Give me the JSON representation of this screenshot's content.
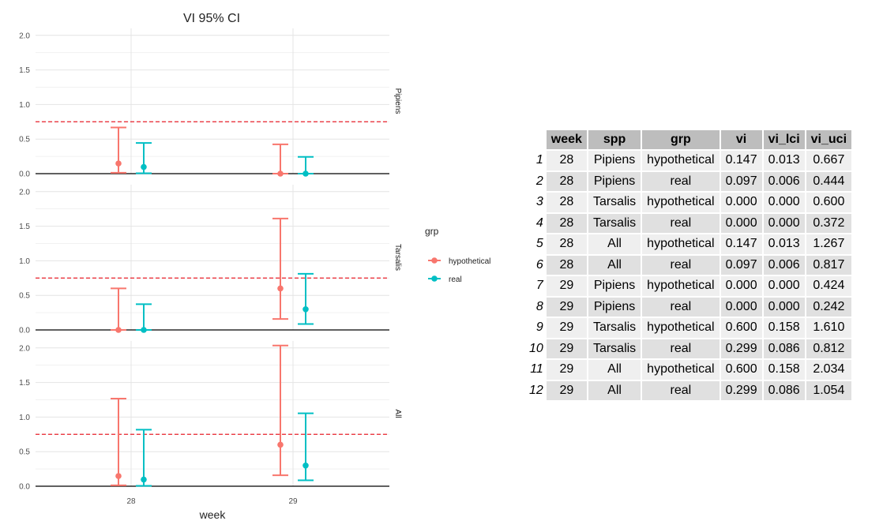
{
  "chart_data": {
    "type": "errorbar",
    "title": "VI 95% CI",
    "xlabel": "week",
    "ylabel": "",
    "categories": [
      "28",
      "29"
    ],
    "ylim": [
      0,
      2.1
    ],
    "y_ticks": [
      "0.0",
      "0.5",
      "1.0",
      "1.5",
      "2.0"
    ],
    "reference_line": 0.75,
    "legend": {
      "title": "grp",
      "position": "right",
      "items": [
        {
          "label": "hypothetical",
          "color": "#F8766D"
        },
        {
          "label": "real",
          "color": "#00BFC4"
        }
      ]
    },
    "panels": [
      {
        "label": "Pipiens",
        "series": [
          {
            "name": "hypothetical",
            "points": [
              {
                "x": "28",
                "vi": 0.147,
                "lci": 0.013,
                "uci": 0.667
              },
              {
                "x": "29",
                "vi": 0.0,
                "lci": 0.0,
                "uci": 0.424
              }
            ]
          },
          {
            "name": "real",
            "points": [
              {
                "x": "28",
                "vi": 0.097,
                "lci": 0.006,
                "uci": 0.444
              },
              {
                "x": "29",
                "vi": 0.0,
                "lci": 0.0,
                "uci": 0.242
              }
            ]
          }
        ]
      },
      {
        "label": "Tarsalis",
        "series": [
          {
            "name": "hypothetical",
            "points": [
              {
                "x": "28",
                "vi": 0.0,
                "lci": 0.0,
                "uci": 0.6
              },
              {
                "x": "29",
                "vi": 0.6,
                "lci": 0.158,
                "uci": 1.61
              }
            ]
          },
          {
            "name": "real",
            "points": [
              {
                "x": "28",
                "vi": 0.0,
                "lci": 0.0,
                "uci": 0.372
              },
              {
                "x": "29",
                "vi": 0.299,
                "lci": 0.086,
                "uci": 0.812
              }
            ]
          }
        ]
      },
      {
        "label": "All",
        "series": [
          {
            "name": "hypothetical",
            "points": [
              {
                "x": "28",
                "vi": 0.147,
                "lci": 0.013,
                "uci": 1.267
              },
              {
                "x": "29",
                "vi": 0.6,
                "lci": 0.158,
                "uci": 2.034
              }
            ]
          },
          {
            "name": "real",
            "points": [
              {
                "x": "28",
                "vi": 0.097,
                "lci": 0.006,
                "uci": 0.817
              },
              {
                "x": "29",
                "vi": 0.299,
                "lci": 0.086,
                "uci": 1.054
              }
            ]
          }
        ]
      }
    ]
  },
  "table": {
    "columns": [
      "week",
      "spp",
      "grp",
      "vi",
      "vi_lci",
      "vi_uci"
    ],
    "rows": [
      [
        "1",
        "28",
        "Pipiens",
        "hypothetical",
        "0.147",
        "0.013",
        "0.667"
      ],
      [
        "2",
        "28",
        "Pipiens",
        "real",
        "0.097",
        "0.006",
        "0.444"
      ],
      [
        "3",
        "28",
        "Tarsalis",
        "hypothetical",
        "0.000",
        "0.000",
        "0.600"
      ],
      [
        "4",
        "28",
        "Tarsalis",
        "real",
        "0.000",
        "0.000",
        "0.372"
      ],
      [
        "5",
        "28",
        "All",
        "hypothetical",
        "0.147",
        "0.013",
        "1.267"
      ],
      [
        "6",
        "28",
        "All",
        "real",
        "0.097",
        "0.006",
        "0.817"
      ],
      [
        "7",
        "29",
        "Pipiens",
        "hypothetical",
        "0.000",
        "0.000",
        "0.424"
      ],
      [
        "8",
        "29",
        "Pipiens",
        "real",
        "0.000",
        "0.000",
        "0.242"
      ],
      [
        "9",
        "29",
        "Tarsalis",
        "hypothetical",
        "0.600",
        "0.158",
        "1.610"
      ],
      [
        "10",
        "29",
        "Tarsalis",
        "real",
        "0.299",
        "0.086",
        "0.812"
      ],
      [
        "11",
        "29",
        "All",
        "hypothetical",
        "0.600",
        "0.158",
        "2.034"
      ],
      [
        "12",
        "29",
        "All",
        "real",
        "0.299",
        "0.086",
        "1.054"
      ]
    ]
  }
}
